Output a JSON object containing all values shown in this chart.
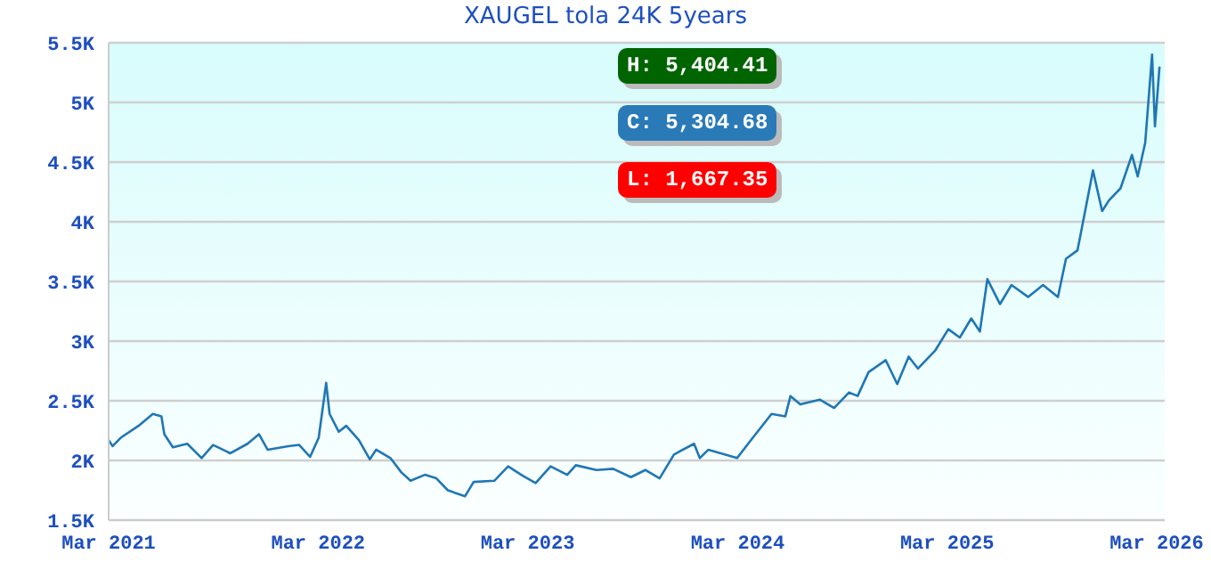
{
  "chart_data": {
    "type": "line",
    "title": "XAUGEL tola 24K 5years",
    "x": [
      "2021-03-01",
      "2021-03-08",
      "2021-03-22",
      "2021-04-22",
      "2021-05-17",
      "2021-06-01",
      "2021-06-06",
      "2021-06-21",
      "2021-07-16",
      "2021-08-10",
      "2021-08-30",
      "2021-09-29",
      "2021-10-29",
      "2021-11-18",
      "2021-12-03",
      "2022-01-08",
      "2022-01-27",
      "2022-02-15",
      "2022-03-02",
      "2022-03-15",
      "2022-03-21",
      "2022-04-06",
      "2022-04-19",
      "2022-05-11",
      "2022-05-30",
      "2022-06-10",
      "2022-07-05",
      "2022-07-24",
      "2022-08-09",
      "2022-09-03",
      "2022-09-23",
      "2022-10-13",
      "2022-11-12",
      "2022-11-27",
      "2023-01-02",
      "2023-01-26",
      "2023-02-21",
      "2023-03-15",
      "2023-04-10",
      "2023-05-09",
      "2023-05-24",
      "2023-06-29",
      "2023-07-28",
      "2023-08-28",
      "2023-09-22",
      "2023-10-17",
      "2023-11-11",
      "2023-12-16",
      "2023-12-26",
      "2024-01-10",
      "2024-02-29",
      "2024-03-24",
      "2024-04-29",
      "2024-05-23",
      "2024-06-01",
      "2024-06-18",
      "2024-07-22",
      "2024-08-16",
      "2024-09-11",
      "2024-09-26",
      "2024-10-15",
      "2024-11-14",
      "2024-12-04",
      "2024-12-24",
      "2025-01-09",
      "2025-02-08",
      "2025-03-03",
      "2025-03-23",
      "2025-04-12",
      "2025-04-27",
      "2025-05-10",
      "2025-06-01",
      "2025-06-21",
      "2025-07-20",
      "2025-08-15",
      "2025-09-10",
      "2025-09-24",
      "2025-10-14",
      "2025-10-27",
      "2025-11-10",
      "2025-11-26",
      "2025-12-08",
      "2025-12-28",
      "2026-01-17",
      "2026-01-27",
      "2026-02-09",
      "2026-02-21",
      "2026-02-26",
      "2026-03-06"
    ],
    "series": [
      {
        "color": "#1f77b4",
        "values": [
          2170,
          2120,
          2190,
          2290,
          2390,
          2370,
          2220,
          2110,
          2140,
          2020,
          2130,
          2060,
          2140,
          2220,
          2090,
          2120,
          2130,
          2030,
          2190,
          2650,
          2390,
          2240,
          2290,
          2170,
          2010,
          2090,
          2020,
          1900,
          1830,
          1880,
          1850,
          1750,
          1700,
          1820,
          1830,
          1950,
          1870,
          1810,
          1950,
          1880,
          1960,
          1920,
          1930,
          1860,
          1920,
          1850,
          2050,
          2140,
          2020,
          2090,
          2020,
          2170,
          2390,
          2370,
          2540,
          2470,
          2510,
          2440,
          2570,
          2540,
          2740,
          2840,
          2640,
          2870,
          2770,
          2920,
          3100,
          3030,
          3190,
          3080,
          3520,
          3310,
          3470,
          3370,
          3470,
          3370,
          3690,
          3760,
          4080,
          4430,
          4090,
          4180,
          4280,
          4560,
          4380,
          4660,
          5400,
          4800,
          5300
        ]
      }
    ],
    "xlim": [
      "2021-03-01",
      "2026-03-15"
    ],
    "xticks": [
      {
        "value": "2021-03-01",
        "label": "Mar 2021"
      },
      {
        "value": "2022-03-01",
        "label": "Mar 2022"
      },
      {
        "value": "2023-03-01",
        "label": "Mar 2023"
      },
      {
        "value": "2024-03-01",
        "label": "Mar 2024"
      },
      {
        "value": "2025-03-01",
        "label": "Mar 2025"
      },
      {
        "value": "2026-03-01",
        "label": "Mar 2026"
      }
    ],
    "ylim": [
      1500,
      5500
    ],
    "yticks": [
      {
        "value": 1500,
        "label": "1.5K"
      },
      {
        "value": 2000,
        "label": "2K"
      },
      {
        "value": 2500,
        "label": "2.5K"
      },
      {
        "value": 3000,
        "label": "3K"
      },
      {
        "value": 3500,
        "label": "3.5K"
      },
      {
        "value": 4000,
        "label": "4K"
      },
      {
        "value": 4500,
        "label": "4.5K"
      },
      {
        "value": 5000,
        "label": "5K"
      },
      {
        "value": 5500,
        "label": "5.5K"
      }
    ],
    "grid": "y",
    "marker": "none",
    "line_style": "solid",
    "annotations": [
      "H: 5,404.41",
      "C: 5,304.68",
      "L: 1,667.35"
    ]
  }
}
